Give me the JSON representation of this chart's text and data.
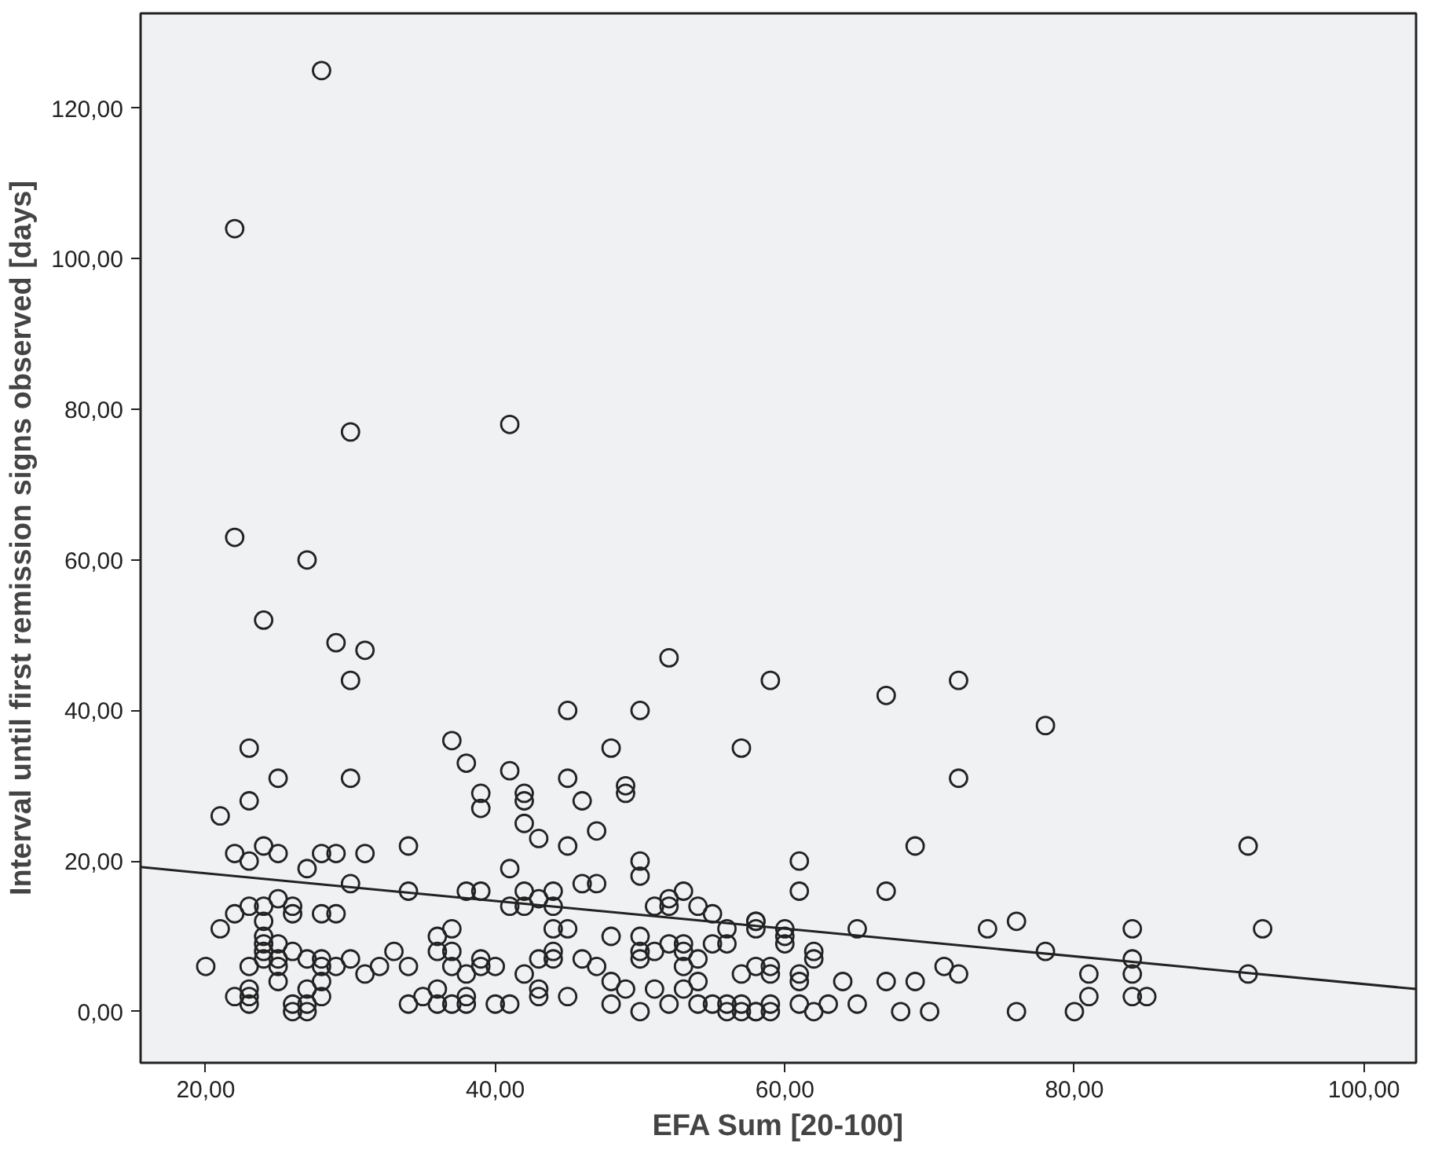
{
  "chart_data": {
    "type": "scatter",
    "xlabel": "EFA Sum [20-100]",
    "ylabel": "Interval until first remission signs observed [days]",
    "xlim": [
      15.5,
      103.6
    ],
    "ylim": [
      -6.8,
      132.6
    ],
    "xticks": [
      {
        "value": 20,
        "label": "20,00"
      },
      {
        "value": 40,
        "label": "40,00"
      },
      {
        "value": 60,
        "label": "60,00"
      },
      {
        "value": 80,
        "label": "80,00"
      },
      {
        "value": 100,
        "label": "100,00"
      }
    ],
    "yticks": [
      {
        "value": 0,
        "label": "0,00"
      },
      {
        "value": 20,
        "label": "20,00"
      },
      {
        "value": 40,
        "label": "40,00"
      },
      {
        "value": 60,
        "label": "60,00"
      },
      {
        "value": 80,
        "label": "80,00"
      },
      {
        "value": 100,
        "label": "100,00"
      },
      {
        "value": 120,
        "label": "120,00"
      }
    ],
    "grid": false,
    "series": [
      {
        "marker": "circle",
        "color": "#222222",
        "x": [
          24,
          29,
          31,
          30,
          37,
          23,
          25,
          30,
          23,
          21,
          22,
          24,
          25,
          23,
          28,
          29,
          31,
          34,
          27,
          30,
          34,
          25,
          24,
          23,
          26,
          26,
          22,
          28,
          29,
          21,
          24,
          24,
          24,
          24,
          24,
          25,
          25,
          25,
          25,
          26,
          27,
          28,
          28,
          29,
          28,
          30,
          31,
          32,
          33,
          34,
          20,
          23,
          22,
          23,
          23,
          23,
          26,
          26,
          27,
          27,
          27,
          28,
          34,
          35,
          36,
          36,
          37,
          36,
          36,
          37,
          37,
          37,
          52,
          45,
          50,
          48,
          57,
          38,
          41,
          45,
          39,
          39,
          42,
          42,
          49,
          49,
          46,
          47,
          42,
          43,
          45,
          50,
          50,
          41,
          38,
          39,
          42,
          44,
          46,
          47,
          43,
          41,
          42,
          44,
          51,
          52,
          52,
          53,
          54,
          55,
          56,
          58,
          44,
          45,
          48,
          50,
          39,
          39,
          38,
          40,
          42,
          43,
          44,
          44,
          46,
          47,
          50,
          50,
          51,
          52,
          53,
          53,
          54,
          55,
          56,
          53,
          54,
          57,
          38,
          38,
          40,
          41,
          43,
          43,
          45,
          48,
          49,
          48,
          50,
          51,
          52,
          53,
          54,
          55,
          56,
          56,
          57,
          57,
          58,
          59,
          67,
          72,
          78,
          72,
          69,
          61,
          61,
          67,
          58,
          58,
          60,
          60,
          60,
          65,
          74,
          76,
          78,
          62,
          62,
          58,
          59,
          59,
          61,
          61,
          64,
          67,
          69,
          71,
          72,
          58,
          59,
          59,
          61,
          62,
          63,
          65,
          68,
          70,
          76,
          92,
          84,
          93,
          84,
          81,
          81,
          84,
          84,
          85,
          92,
          80,
          28,
          22,
          30,
          41,
          22,
          27
        ],
        "values": [
          52,
          49,
          48,
          44,
          36,
          35,
          31,
          31,
          28,
          26,
          21,
          22,
          21,
          20,
          21,
          21,
          21,
          22,
          19,
          17,
          16,
          15,
          14,
          14,
          14,
          13,
          13,
          13,
          13,
          11,
          12,
          10,
          9,
          8,
          7,
          9,
          7,
          6,
          4,
          8,
          7,
          7,
          6,
          6,
          4,
          7,
          5,
          6,
          8,
          6,
          6,
          6,
          2,
          3,
          2,
          1,
          1,
          0,
          1,
          0,
          3,
          2,
          1,
          2,
          3,
          1,
          1,
          10,
          8,
          11,
          8,
          6,
          47,
          40,
          40,
          35,
          35,
          33,
          32,
          31,
          29,
          27,
          29,
          28,
          30,
          29,
          28,
          24,
          25,
          23,
          22,
          20,
          18,
          19,
          16,
          16,
          16,
          16,
          17,
          17,
          15,
          14,
          14,
          14,
          14,
          15,
          14,
          16,
          14,
          13,
          11,
          12,
          11,
          11,
          10,
          10,
          7,
          6,
          5,
          6,
          5,
          7,
          8,
          7,
          7,
          6,
          8,
          7,
          8,
          9,
          9,
          8,
          7,
          9,
          9,
          6,
          4,
          5,
          2,
          1,
          1,
          1,
          3,
          2,
          2,
          4,
          3,
          1,
          0,
          3,
          1,
          3,
          1,
          1,
          1,
          0,
          1,
          0,
          6,
          44,
          42,
          44,
          38,
          31,
          22,
          20,
          16,
          16,
          12,
          11,
          11,
          10,
          9,
          11,
          11,
          12,
          8,
          8,
          7,
          0,
          6,
          5,
          5,
          4,
          4,
          4,
          4,
          6,
          5,
          0,
          1,
          0,
          1,
          0,
          1,
          1,
          0,
          0,
          0,
          22,
          11,
          11,
          7,
          5,
          2,
          5,
          2,
          2,
          5,
          0,
          125,
          104,
          77,
          78,
          63,
          60
        ]
      },
      {
        "type": "line",
        "color": "#222222",
        "x": [
          15.5,
          103.6
        ],
        "values": [
          19.2,
          3.0
        ]
      }
    ]
  }
}
